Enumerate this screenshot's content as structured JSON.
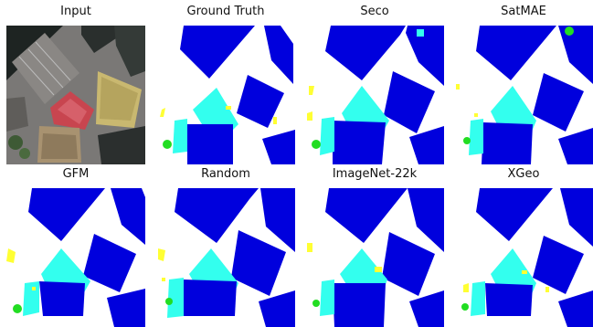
{
  "figure": {
    "panels": [
      {
        "title": "Input",
        "kind": "aerial-photo"
      },
      {
        "title": "Ground Truth",
        "kind": "segmentation-mask"
      },
      {
        "title": "Seco",
        "kind": "segmentation-mask"
      },
      {
        "title": "SatMAE",
        "kind": "segmentation-mask"
      },
      {
        "title": "GFM",
        "kind": "segmentation-mask"
      },
      {
        "title": "Random",
        "kind": "segmentation-mask"
      },
      {
        "title": "ImageNet-22k",
        "kind": "segmentation-mask"
      },
      {
        "title": "XGeo",
        "kind": "segmentation-mask"
      }
    ],
    "colors": {
      "building": "#0000dd",
      "background": "#ffffff",
      "low_vegetation": "#33ffee",
      "tree": "#22dd22",
      "car": "#ffff33"
    }
  }
}
